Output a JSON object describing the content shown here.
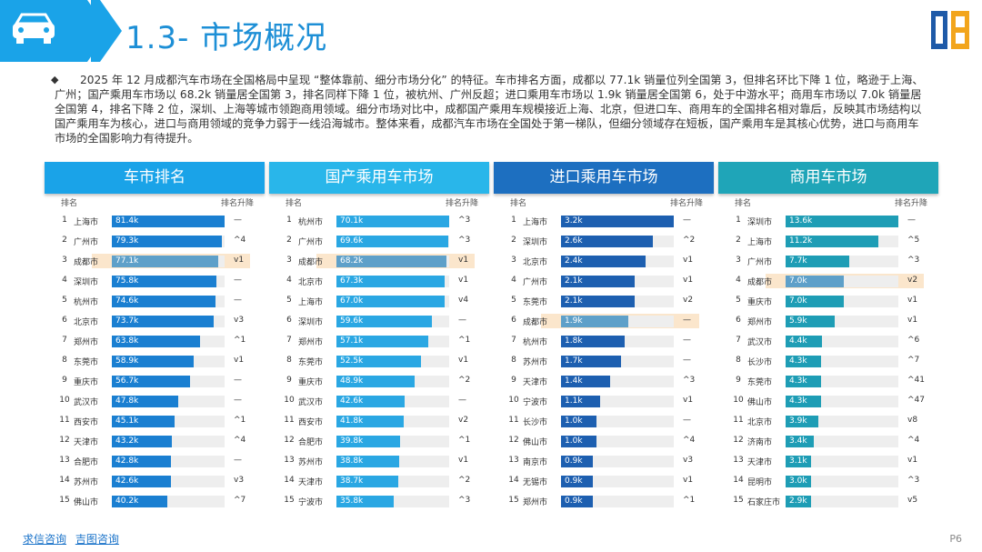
{
  "header": {
    "title": "1.3- 市场概况"
  },
  "summary": {
    "text": "2025 年 12 月成都汽车市场在全国格局中呈现 “整体靠前、细分市场分化” 的特征。车市排名方面，成都以 77.1k 销量位列全国第 3，但排名环比下降 1 位，略逊于上海、广州；国产乘用车市场以 68.2k 销量居全国第 3，排名同样下降 1 位，被杭州、广州反超；进口乘用车市场以 1.9k 销量居全国第 6，处于中游水平；商用车市场以 7.0k 销量居全国第 4，排名下降 2 位，深圳、上海等城市领跑商用领域。细分市场对比中，成都国产乘用车规模接近上海、北京，但进口车、商用车的全国排名相对靠后，反映其市场结构以国产乘用车为核心，进口与商用领域的竞争力弱于一线沿海城市。整体来看，成都汽车市场在全国处于第一梯队，但细分领域存在短板，国产乘用车是其核心优势，进口与商用车市场的全国影响力有待提升。"
  },
  "column_headers": {
    "rank": "排名",
    "change": "排名升降"
  },
  "panels": [
    {
      "title": "车市排名",
      "head_color": "#1aa3e8",
      "bar_color": "#1a7fd1",
      "max": 81.4,
      "rows": [
        {
          "rank": "1",
          "city": "上海市",
          "value": 81.4,
          "label": "81.4k",
          "change": "—"
        },
        {
          "rank": "2",
          "city": "广州市",
          "value": 79.3,
          "label": "79.3k",
          "change": "^4"
        },
        {
          "rank": "3",
          "city": "成都市",
          "value": 77.1,
          "label": "77.1k",
          "change": "v1",
          "highlight": true
        },
        {
          "rank": "4",
          "city": "深圳市",
          "value": 75.8,
          "label": "75.8k",
          "change": "—"
        },
        {
          "rank": "5",
          "city": "杭州市",
          "value": 74.6,
          "label": "74.6k",
          "change": "—"
        },
        {
          "rank": "6",
          "city": "北京市",
          "value": 73.7,
          "label": "73.7k",
          "change": "v3"
        },
        {
          "rank": "7",
          "city": "郑州市",
          "value": 63.8,
          "label": "63.8k",
          "change": "^1"
        },
        {
          "rank": "8",
          "city": "东莞市",
          "value": 58.9,
          "label": "58.9k",
          "change": "v1"
        },
        {
          "rank": "9",
          "city": "重庆市",
          "value": 56.7,
          "label": "56.7k",
          "change": "—"
        },
        {
          "rank": "10",
          "city": "武汉市",
          "value": 47.8,
          "label": "47.8k",
          "change": "—"
        },
        {
          "rank": "11",
          "city": "西安市",
          "value": 45.1,
          "label": "45.1k",
          "change": "^1"
        },
        {
          "rank": "12",
          "city": "天津市",
          "value": 43.2,
          "label": "43.2k",
          "change": "^4"
        },
        {
          "rank": "13",
          "city": "合肥市",
          "value": 42.8,
          "label": "42.8k",
          "change": "—"
        },
        {
          "rank": "14",
          "city": "苏州市",
          "value": 42.6,
          "label": "42.6k",
          "change": "v3"
        },
        {
          "rank": "15",
          "city": "佛山市",
          "value": 40.2,
          "label": "40.2k",
          "change": "^7"
        }
      ]
    },
    {
      "title": "国产乘用车市场",
      "head_color": "#29b6ea",
      "bar_color": "#2aa7e3",
      "max": 70.1,
      "rows": [
        {
          "rank": "1",
          "city": "杭州市",
          "value": 70.1,
          "label": "70.1k",
          "change": "^3"
        },
        {
          "rank": "2",
          "city": "广州市",
          "value": 69.6,
          "label": "69.6k",
          "change": "^3"
        },
        {
          "rank": "3",
          "city": "成都市",
          "value": 68.2,
          "label": "68.2k",
          "change": "v1",
          "highlight": true
        },
        {
          "rank": "4",
          "city": "北京市",
          "value": 67.3,
          "label": "67.3k",
          "change": "v1"
        },
        {
          "rank": "5",
          "city": "上海市",
          "value": 67.0,
          "label": "67.0k",
          "change": "v4"
        },
        {
          "rank": "6",
          "city": "深圳市",
          "value": 59.6,
          "label": "59.6k",
          "change": "—"
        },
        {
          "rank": "7",
          "city": "郑州市",
          "value": 57.1,
          "label": "57.1k",
          "change": "^1"
        },
        {
          "rank": "8",
          "city": "东莞市",
          "value": 52.5,
          "label": "52.5k",
          "change": "v1"
        },
        {
          "rank": "9",
          "city": "重庆市",
          "value": 48.9,
          "label": "48.9k",
          "change": "^2"
        },
        {
          "rank": "10",
          "city": "武汉市",
          "value": 42.6,
          "label": "42.6k",
          "change": "—"
        },
        {
          "rank": "11",
          "city": "西安市",
          "value": 41.8,
          "label": "41.8k",
          "change": "v2"
        },
        {
          "rank": "12",
          "city": "合肥市",
          "value": 39.8,
          "label": "39.8k",
          "change": "^1"
        },
        {
          "rank": "13",
          "city": "苏州市",
          "value": 38.8,
          "label": "38.8k",
          "change": "v1"
        },
        {
          "rank": "14",
          "city": "天津市",
          "value": 38.7,
          "label": "38.7k",
          "change": "^2"
        },
        {
          "rank": "15",
          "city": "宁波市",
          "value": 35.8,
          "label": "35.8k",
          "change": "^3"
        }
      ]
    },
    {
      "title": "进口乘用车市场",
      "head_color": "#1d6fc0",
      "bar_color": "#1d5fb0",
      "max": 3.2,
      "rows": [
        {
          "rank": "1",
          "city": "上海市",
          "value": 3.2,
          "label": "3.2k",
          "change": "—"
        },
        {
          "rank": "2",
          "city": "深圳市",
          "value": 2.6,
          "label": "2.6k",
          "change": "^2"
        },
        {
          "rank": "3",
          "city": "北京市",
          "value": 2.4,
          "label": "2.4k",
          "change": "v1"
        },
        {
          "rank": "4",
          "city": "广州市",
          "value": 2.1,
          "label": "2.1k",
          "change": "v1"
        },
        {
          "rank": "5",
          "city": "东莞市",
          "value": 2.1,
          "label": "2.1k",
          "change": "v2"
        },
        {
          "rank": "6",
          "city": "成都市",
          "value": 1.9,
          "label": "1.9k",
          "change": "—",
          "highlight": true
        },
        {
          "rank": "7",
          "city": "杭州市",
          "value": 1.8,
          "label": "1.8k",
          "change": "—"
        },
        {
          "rank": "8",
          "city": "苏州市",
          "value": 1.7,
          "label": "1.7k",
          "change": "—"
        },
        {
          "rank": "9",
          "city": "天津市",
          "value": 1.4,
          "label": "1.4k",
          "change": "^3"
        },
        {
          "rank": "10",
          "city": "宁波市",
          "value": 1.1,
          "label": "1.1k",
          "change": "v1"
        },
        {
          "rank": "11",
          "city": "长沙市",
          "value": 1.0,
          "label": "1.0k",
          "change": "—"
        },
        {
          "rank": "12",
          "city": "佛山市",
          "value": 1.0,
          "label": "1.0k",
          "change": "^4"
        },
        {
          "rank": "13",
          "city": "南京市",
          "value": 0.9,
          "label": "0.9k",
          "change": "v3"
        },
        {
          "rank": "14",
          "city": "无锡市",
          "value": 0.9,
          "label": "0.9k",
          "change": "v1"
        },
        {
          "rank": "15",
          "city": "郑州市",
          "value": 0.9,
          "label": "0.9k",
          "change": "^1"
        }
      ]
    },
    {
      "title": "商用车市场",
      "head_color": "#1fa5b8",
      "bar_color": "#1e9db5",
      "max": 13.6,
      "rows": [
        {
          "rank": "1",
          "city": "深圳市",
          "value": 13.6,
          "label": "13.6k",
          "change": "—"
        },
        {
          "rank": "2",
          "city": "上海市",
          "value": 11.2,
          "label": "11.2k",
          "change": "^5"
        },
        {
          "rank": "3",
          "city": "广州市",
          "value": 7.7,
          "label": "7.7k",
          "change": "^3"
        },
        {
          "rank": "4",
          "city": "成都市",
          "value": 7.0,
          "label": "7.0k",
          "change": "v2",
          "highlight": true
        },
        {
          "rank": "5",
          "city": "重庆市",
          "value": 7.0,
          "label": "7.0k",
          "change": "v1"
        },
        {
          "rank": "6",
          "city": "郑州市",
          "value": 5.9,
          "label": "5.9k",
          "change": "v1"
        },
        {
          "rank": "7",
          "city": "武汉市",
          "value": 4.4,
          "label": "4.4k",
          "change": "^6"
        },
        {
          "rank": "8",
          "city": "长沙市",
          "value": 4.3,
          "label": "4.3k",
          "change": "^7"
        },
        {
          "rank": "9",
          "city": "东莞市",
          "value": 4.3,
          "label": "4.3k",
          "change": "^41"
        },
        {
          "rank": "10",
          "city": "佛山市",
          "value": 4.3,
          "label": "4.3k",
          "change": "^47"
        },
        {
          "rank": "11",
          "city": "北京市",
          "value": 3.9,
          "label": "3.9k",
          "change": "v8"
        },
        {
          "rank": "12",
          "city": "济南市",
          "value": 3.4,
          "label": "3.4k",
          "change": "^4"
        },
        {
          "rank": "13",
          "city": "天津市",
          "value": 3.1,
          "label": "3.1k",
          "change": "v1"
        },
        {
          "rank": "14",
          "city": "昆明市",
          "value": 3.0,
          "label": "3.0k",
          "change": "^3"
        },
        {
          "rank": "15",
          "city": "石家庄市",
          "value": 2.9,
          "label": "2.9k",
          "change": "v5"
        }
      ]
    }
  ],
  "footer": {
    "link1": "求信咨询",
    "link2": "吉图咨询",
    "page": "P6"
  },
  "colors": {
    "highlight_bar": "#5ea0c9",
    "accent": "#1d8fd6"
  }
}
